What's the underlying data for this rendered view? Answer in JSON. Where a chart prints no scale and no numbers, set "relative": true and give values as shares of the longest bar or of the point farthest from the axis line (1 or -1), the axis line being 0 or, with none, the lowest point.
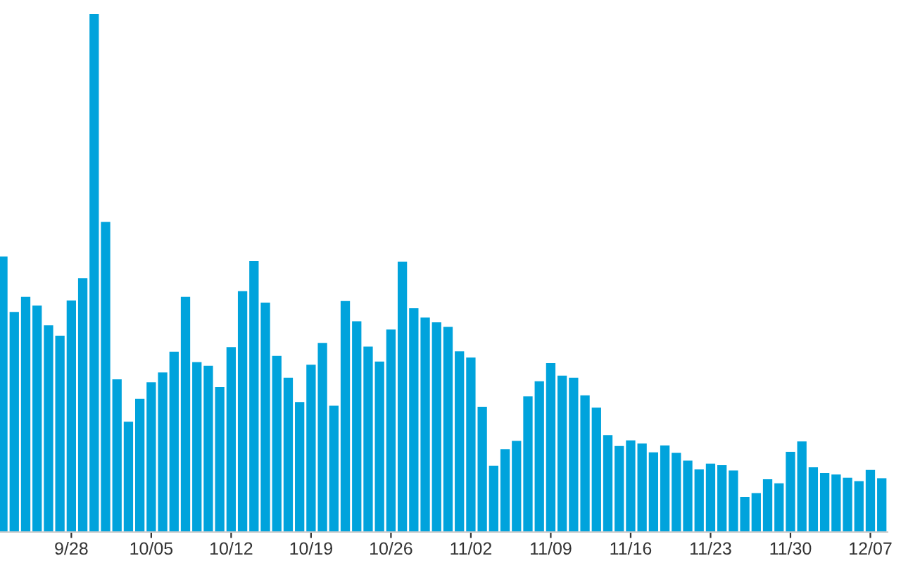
{
  "chart_data": {
    "type": "bar",
    "relative": true,
    "color": "#00a3dc",
    "categories": [
      null,
      null,
      null,
      null,
      null,
      null,
      "9/28",
      null,
      null,
      null,
      null,
      null,
      null,
      "10/05",
      null,
      null,
      null,
      null,
      null,
      null,
      "10/12",
      null,
      null,
      null,
      null,
      null,
      null,
      "10/19",
      null,
      null,
      null,
      null,
      null,
      null,
      "10/26",
      null,
      null,
      null,
      null,
      null,
      null,
      "11/02",
      null,
      null,
      null,
      null,
      null,
      null,
      "11/09",
      null,
      null,
      null,
      null,
      null,
      null,
      "11/16",
      null,
      null,
      null,
      null,
      null,
      null,
      "11/23",
      null,
      null,
      null,
      null,
      null,
      null,
      "11/30",
      null,
      null,
      null,
      null,
      null,
      null,
      "12/07",
      null
    ],
    "values": [
      0.532,
      0.425,
      0.454,
      0.437,
      0.399,
      0.379,
      0.447,
      0.49,
      1,
      0.599,
      0.295,
      0.213,
      0.257,
      0.289,
      0.308,
      0.348,
      0.454,
      0.328,
      0.321,
      0.28,
      0.357,
      0.465,
      0.523,
      0.443,
      0.34,
      0.298,
      0.251,
      0.323,
      0.365,
      0.244,
      0.446,
      0.407,
      0.358,
      0.329,
      0.391,
      0.522,
      0.432,
      0.414,
      0.405,
      0.396,
      0.349,
      0.337,
      0.242,
      0.128,
      0.16,
      0.176,
      0.262,
      0.291,
      0.326,
      0.302,
      0.298,
      0.264,
      0.24,
      0.187,
      0.166,
      0.177,
      0.171,
      0.154,
      0.167,
      0.153,
      0.138,
      0.121,
      0.132,
      0.129,
      0.119,
      0.068,
      0.075,
      0.102,
      0.094,
      0.155,
      0.175,
      0.125,
      0.114,
      0.111,
      0.105,
      0.098,
      0.12,
      0.104
    ]
  }
}
